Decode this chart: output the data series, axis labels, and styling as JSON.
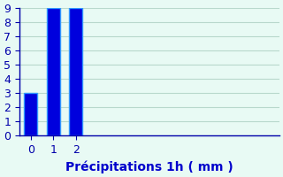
{
  "categories": [
    0,
    1,
    2
  ],
  "values": [
    3,
    9,
    9
  ],
  "bar_color": "#0000dd",
  "bar_edge_color": "#3399ff",
  "background_color": "#e8faf4",
  "grid_color": "#b8d8cc",
  "axis_color": "#0000aa",
  "text_color": "#0000cc",
  "xlabel": "Précipitations 1h ( mm )",
  "ylim": [
    0,
    9
  ],
  "xlim": [
    -0.5,
    11
  ],
  "yticks": [
    0,
    1,
    2,
    3,
    4,
    5,
    6,
    7,
    8,
    9
  ],
  "xticks": [
    0,
    1,
    2
  ],
  "bar_width": 0.6,
  "xlabel_fontsize": 10,
  "tick_fontsize": 9
}
